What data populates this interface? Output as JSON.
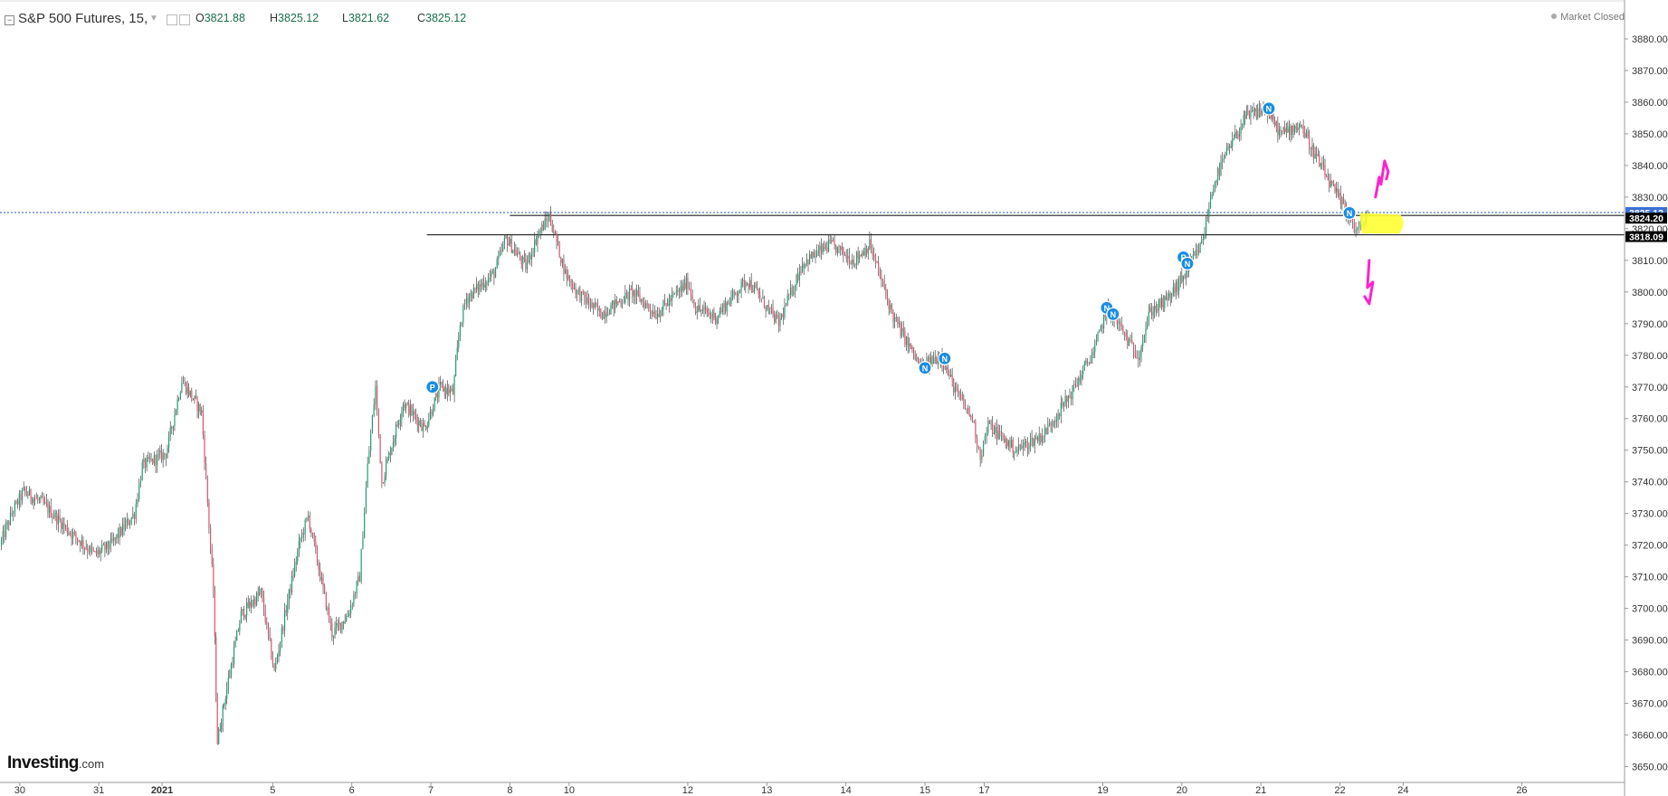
{
  "header": {
    "title": "S&P 500 Futures, 15,",
    "open_label": "O",
    "open": "3821.88",
    "high_label": "H",
    "high": "3825.12",
    "low_label": "L",
    "low": "3821.62",
    "close_label": "C",
    "close": "3825.12",
    "market_status": "Market Closed"
  },
  "logo": {
    "brand": "Investing",
    "suffix": ".com"
  },
  "colors": {
    "up": "#1e9e73",
    "down": "#e0526b",
    "wick": "#2b2b2b",
    "price_badge": "#3b6fd6",
    "level_badge": "#000000",
    "marker": "#1a8de0",
    "highlight": "#ffff33",
    "arrow": "#ff22cc"
  },
  "chart_data": {
    "type": "candlestick",
    "ylim": [
      3645,
      3882
    ],
    "y_ticks": [
      "3650.00",
      "3660.00",
      "3670.00",
      "3680.00",
      "3690.00",
      "3700.00",
      "3710.00",
      "3720.00",
      "3730.00",
      "3740.00",
      "3750.00",
      "3760.00",
      "3770.00",
      "3780.00",
      "3790.00",
      "3800.00",
      "3810.00",
      "3820.00",
      "3830.00",
      "3840.00",
      "3850.00",
      "3860.00",
      "3870.00",
      "3880.00"
    ],
    "x_ticks": [
      "30",
      "31",
      "2021",
      "5",
      "6",
      "7",
      "8",
      "10",
      "12",
      "13",
      "14",
      "15",
      "17",
      "19",
      "20",
      "21",
      "22",
      "24",
      "26"
    ],
    "x_tick_positions": [
      0.5,
      1.5,
      2.3,
      3.7,
      4.7,
      5.7,
      6.7,
      7.45,
      8.95,
      9.95,
      10.95,
      11.95,
      12.7,
      14.2,
      15.2,
      16.2,
      17.2,
      18.0,
      19.5
    ],
    "x_range": [
      0.25,
      20.8
    ],
    "path": [
      [
        0.25,
        3720
      ],
      [
        0.4,
        3730
      ],
      [
        0.55,
        3737
      ],
      [
        0.8,
        3733
      ],
      [
        1.1,
        3725
      ],
      [
        1.45,
        3717
      ],
      [
        1.65,
        3720
      ],
      [
        1.95,
        3730
      ],
      [
        2.05,
        3745
      ],
      [
        2.35,
        3749
      ],
      [
        2.55,
        3772
      ],
      [
        2.8,
        3762
      ],
      [
        2.95,
        3705
      ],
      [
        3.0,
        3658
      ],
      [
        3.12,
        3675
      ],
      [
        3.3,
        3698
      ],
      [
        3.55,
        3705
      ],
      [
        3.72,
        3680
      ],
      [
        3.87,
        3700
      ],
      [
        4.05,
        3722
      ],
      [
        4.15,
        3729
      ],
      [
        4.45,
        3692
      ],
      [
        4.65,
        3698
      ],
      [
        4.8,
        3710
      ],
      [
        4.9,
        3745
      ],
      [
        5.0,
        3770
      ],
      [
        5.08,
        3740
      ],
      [
        5.35,
        3765
      ],
      [
        5.62,
        3757
      ],
      [
        5.82,
        3770
      ],
      [
        5.98,
        3768
      ],
      [
        6.07,
        3790
      ],
      [
        6.15,
        3798
      ],
      [
        6.5,
        3806
      ],
      [
        6.65,
        3817
      ],
      [
        6.9,
        3808
      ],
      [
        7.05,
        3818
      ],
      [
        7.2,
        3824
      ],
      [
        7.4,
        3806
      ],
      [
        7.55,
        3800
      ],
      [
        7.85,
        3793
      ],
      [
        8.25,
        3800
      ],
      [
        8.55,
        3793
      ],
      [
        8.95,
        3803
      ],
      [
        9.05,
        3795
      ],
      [
        9.3,
        3792
      ],
      [
        9.7,
        3804
      ],
      [
        10.1,
        3790
      ],
      [
        10.4,
        3809
      ],
      [
        10.75,
        3815
      ],
      [
        11.05,
        3810
      ],
      [
        11.25,
        3815
      ],
      [
        11.55,
        3792
      ],
      [
        11.9,
        3776
      ],
      [
        12.15,
        3780
      ],
      [
        12.35,
        3768
      ],
      [
        12.55,
        3760
      ],
      [
        12.65,
        3748
      ],
      [
        12.75,
        3758
      ],
      [
        13.1,
        3750
      ],
      [
        13.45,
        3755
      ],
      [
        13.8,
        3768
      ],
      [
        14.1,
        3782
      ],
      [
        14.25,
        3795
      ],
      [
        14.4,
        3790
      ],
      [
        14.55,
        3783
      ],
      [
        14.65,
        3780
      ],
      [
        14.8,
        3794
      ],
      [
        15.0,
        3797
      ],
      [
        15.2,
        3804
      ],
      [
        15.45,
        3815
      ],
      [
        15.6,
        3834
      ],
      [
        15.75,
        3843
      ],
      [
        16.0,
        3855
      ],
      [
        16.25,
        3858
      ],
      [
        16.45,
        3850
      ],
      [
        16.7,
        3853
      ],
      [
        16.85,
        3845
      ],
      [
        17.1,
        3833
      ],
      [
        17.3,
        3825
      ],
      [
        17.4,
        3819
      ],
      [
        17.5,
        3822
      ],
      [
        17.55,
        3825.12
      ]
    ],
    "candles_per_segment": 3,
    "horizontal_levels": [
      {
        "value": 3825.12,
        "style": "dotted",
        "color": "#3b6fd6",
        "from_x": 0.0,
        "label": "3825.12"
      },
      {
        "value": 3824.2,
        "style": "solid",
        "color": "#222222",
        "from_x": 6.7,
        "label": "3824.20"
      },
      {
        "value": 3818.09,
        "style": "solid",
        "color": "#222222",
        "from_x": 5.65,
        "label": "3818.09"
      }
    ],
    "event_markers": [
      {
        "x": 5.72,
        "y": 3770,
        "label": "P"
      },
      {
        "x": 11.95,
        "y": 3776,
        "label": "N"
      },
      {
        "x": 12.2,
        "y": 3779,
        "label": "N"
      },
      {
        "x": 14.25,
        "y": 3795,
        "label": "N"
      },
      {
        "x": 14.33,
        "y": 3793,
        "label": "N"
      },
      {
        "x": 15.22,
        "y": 3811,
        "label": "P"
      },
      {
        "x": 15.27,
        "y": 3809,
        "label": "N"
      },
      {
        "x": 16.3,
        "y": 3858,
        "label": "N"
      },
      {
        "x": 17.32,
        "y": 3825,
        "label": "N"
      }
    ]
  }
}
